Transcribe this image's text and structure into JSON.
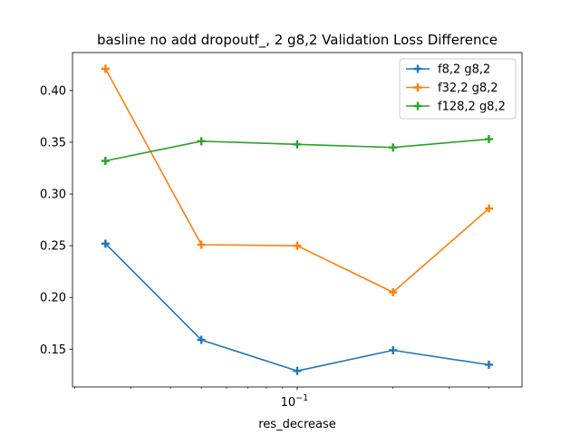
{
  "chart_data": {
    "type": "line",
    "title": "basline no add dropoutf_, 2 g8,2 Validation Loss Difference",
    "xlabel": "res_decrease",
    "ylabel": "",
    "x_scale": "log",
    "x": [
      0.025,
      0.05,
      0.1,
      0.2,
      0.4
    ],
    "xlim": [
      0.0197,
      0.508
    ],
    "ylim": [
      0.1135,
      0.4367
    ],
    "y_ticks": [
      0.15,
      0.2,
      0.25,
      0.3,
      0.35,
      0.4
    ],
    "y_tick_labels": [
      "0.15",
      "0.20",
      "0.25",
      "0.30",
      "0.35",
      "0.40"
    ],
    "x_major_ticks": [
      0.1
    ],
    "x_major_tick_labels": [
      "10^-1"
    ],
    "x_minor_ticks": [
      0.02,
      0.03,
      0.04,
      0.05,
      0.06,
      0.07,
      0.08,
      0.09,
      0.2,
      0.3,
      0.4
    ],
    "grid": false,
    "legend_position": "top-right",
    "series": [
      {
        "name": "f8,2 g8,2",
        "color": "#1f77b4",
        "values": [
          0.252,
          0.159,
          0.129,
          0.149,
          0.135
        ]
      },
      {
        "name": "f32,2 g8,2",
        "color": "#ff7f0e",
        "values": [
          0.421,
          0.251,
          0.25,
          0.205,
          0.286
        ]
      },
      {
        "name": "f128,2 g8,2",
        "color": "#2ca02c",
        "values": [
          0.332,
          0.351,
          0.348,
          0.345,
          0.353
        ]
      }
    ]
  }
}
